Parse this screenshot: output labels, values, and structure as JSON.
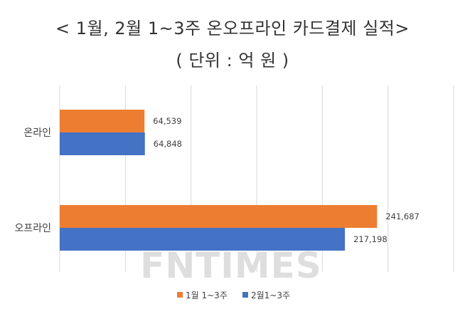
{
  "chart_data": {
    "type": "bar",
    "orientation": "horizontal",
    "title": "< 1월, 2월 1~3주 온오프라인 카드결제 실적>",
    "subtitle": "( 단위 : 억 원 )",
    "categories": [
      "온라인",
      "오프라인"
    ],
    "series": [
      {
        "name": "1월 1~3주",
        "values": [
          64539,
          241687
        ],
        "color": "#ED7D31"
      },
      {
        "name": "2월1~3주",
        "values": [
          64848,
          217198
        ],
        "color": "#4472C4"
      }
    ],
    "data_labels": [
      [
        "64,539",
        "241,687"
      ],
      [
        "64,848",
        "217,198"
      ]
    ],
    "xlim": [
      0,
      300000
    ],
    "grid": true,
    "legend_position": "bottom"
  },
  "watermark": "FNTIMES"
}
